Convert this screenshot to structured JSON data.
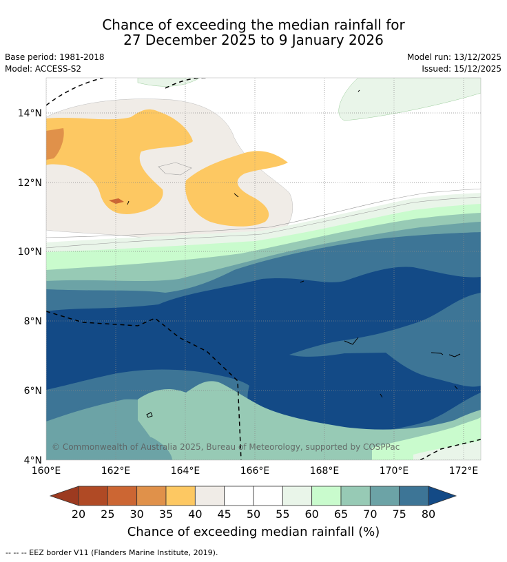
{
  "title": {
    "line1": "Chance of exceeding the median rainfall for",
    "line2": "27 December 2025 to 9 January 2026"
  },
  "meta": {
    "base_period": "Base period: 1981-2018",
    "model": "Model: ACCESS-S2",
    "model_run": "Model run: 13/12/2025",
    "issued": "Issued: 15/12/2025"
  },
  "axes": {
    "x_ticks": [
      "160°E",
      "162°E",
      "164°E",
      "166°E",
      "168°E",
      "170°E",
      "172°E"
    ],
    "y_ticks": [
      "14°N",
      "12°N",
      "10°N",
      "8°N",
      "6°N",
      "4°N"
    ]
  },
  "copyright": "© Commonwealth of Australia 2025, Bureau of Meteorology, supported by COSPPac",
  "colorbar": {
    "title": "Chance of exceeding median rainfall (%)",
    "labels": [
      "20",
      "25",
      "30",
      "35",
      "40",
      "45",
      "50",
      "55",
      "60",
      "65",
      "70",
      "75",
      "80"
    ],
    "colors": [
      "#b04a25",
      "#cc6633",
      "#e0914a",
      "#fdc862",
      "#f0ece7",
      "#ffffff",
      "#ffffff",
      "#e9f5e9",
      "#c9fbcd",
      "#97cab5",
      "#6ca3a6",
      "#3d7596",
      "#134a86"
    ],
    "under_color": "#9c3a20",
    "over_color": "#134a86"
  },
  "footnote": "-- -- -- EEZ border V11 (Flanders Marine Institute, 2019).",
  "palette": {
    "bg": "#ffffff",
    "p35_40": "#fdc862",
    "p40_45": "#f0ece7",
    "p55_60": "#e9f5e9",
    "p60_65": "#c9fbcd",
    "p65_70": "#97cab5",
    "p70_75": "#6ca3a6",
    "p75_80": "#3d7596",
    "p80": "#134a86",
    "p25_30": "#e0914a",
    "p20_25": "#cc6633"
  }
}
